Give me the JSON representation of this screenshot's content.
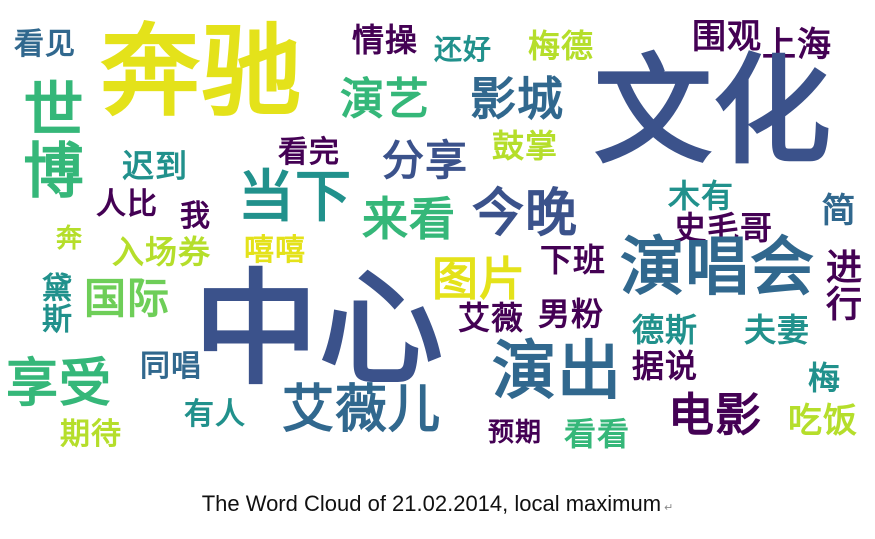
{
  "caption": {
    "text": "The Word Cloud of 21.02.2014, local maximum",
    "return_mark": "↵"
  },
  "cloud": {
    "words": {
      "kanjian": "看见",
      "benchi": "奔驰",
      "shibo": "世博",
      "qingcao": "情操",
      "tinghao": "还好",
      "meide": "梅德",
      "weiguan": "围观",
      "shanghai": "上海",
      "wenhua": "文化",
      "yanyi": "演艺",
      "yingcheng": "影城",
      "kanwan": "看完",
      "fenxiang": "分享",
      "guzhang": "鼓掌",
      "chidao": "迟到",
      "dangxia": "当下",
      "renbi": "人比",
      "wo": "我",
      "laikan": "来看",
      "jinwan": "今晚",
      "meiyou": "木有",
      "shimaoge": "史毛哥",
      "jian": "简",
      "ben": "奔",
      "rchangquan": "入场券",
      "xixi": "嘻嘻",
      "tupian": "图片",
      "xiaban": "下班",
      "yanchanghui": "演唱会",
      "jinxing": "进行",
      "desi_v": "黛斯",
      "guoji": "国际",
      "zhongxin": "中心",
      "aiwei": "艾薇",
      "nanfen": "男粉",
      "desi": "德斯",
      "fuqi": "夫妻",
      "xiangshou": "享受",
      "tongchang": "同唱",
      "yanchu": "演出",
      "jushuo": "据说",
      "mei": "梅",
      "youren": "有人",
      "aiweier": "艾薇儿",
      "dianying": "电影",
      "qidai": "期待",
      "yuqi": "预期",
      "kankan": "看看",
      "chifan": "吃饭"
    }
  },
  "palette": {
    "dark_purple": "#440154",
    "indigo": "#3b528b",
    "blue": "#31688e",
    "teal": "#21918c",
    "green": "#35b779",
    "lime": "#6ece58",
    "yellow_green": "#b5de2b",
    "yellow": "#e4e21a"
  }
}
